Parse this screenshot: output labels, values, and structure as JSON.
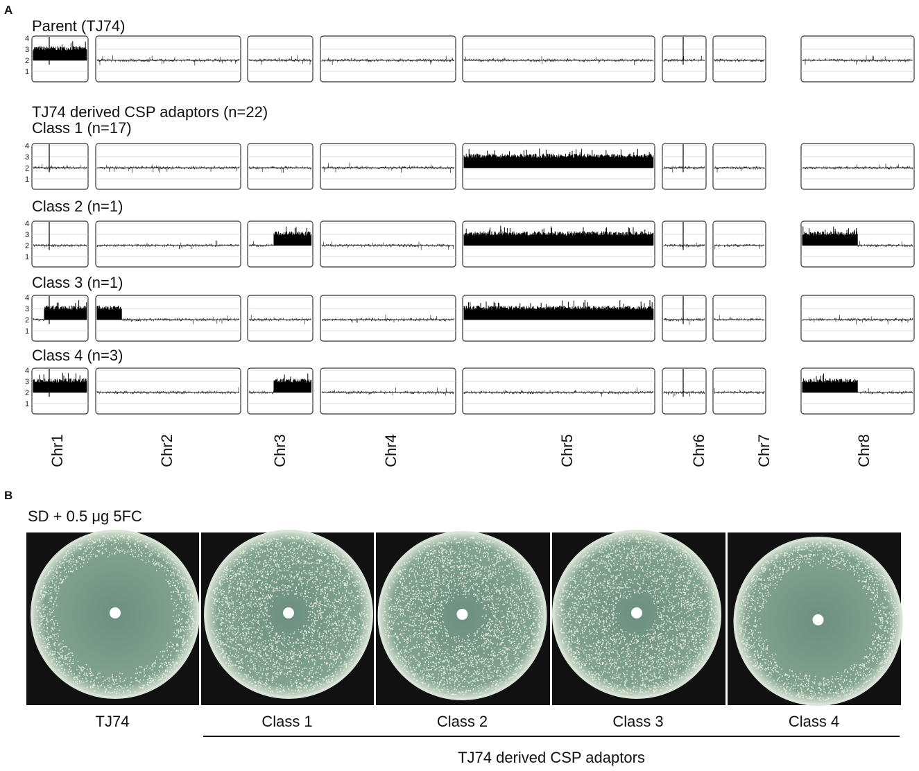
{
  "panel_a": {
    "label": "A",
    "group_title": "TJ74 derived CSP adaptors (n=22)",
    "rows": [
      {
        "title": "Parent (TJ74)"
      },
      {
        "title": "Class 1 (n=17)"
      },
      {
        "title": "Class 2 (n=1)"
      },
      {
        "title": "Class 3 (n=1)"
      },
      {
        "title": "Class 4 (n=3)"
      }
    ],
    "y_tick_labels": [
      "4",
      "3",
      "2",
      "1"
    ],
    "chromosomes": [
      "Chr1",
      "Chr2",
      "Chr3",
      "Chr4",
      "Chr5",
      "Chr6",
      "Chr7",
      "Chr8"
    ]
  },
  "panel_b": {
    "label": "B",
    "condition": "SD + 0.5 μg 5FC",
    "plates": [
      "TJ74",
      "Class 1",
      "Class 2",
      "Class 3",
      "Class 4"
    ],
    "group_label": "TJ74 derived CSP adaptors"
  }
}
